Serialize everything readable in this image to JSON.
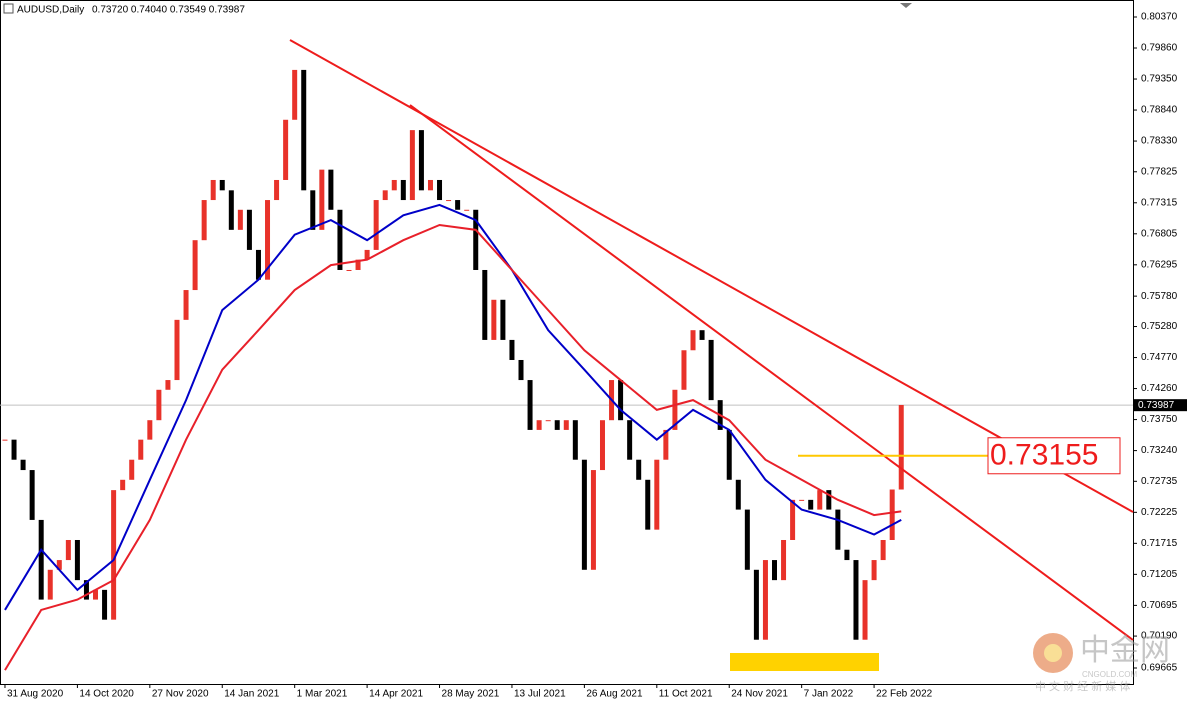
{
  "header": {
    "symbol": "AUDUSD,Daily",
    "quote": "0.73720 0.74040 0.73549 0.73987"
  },
  "watermark": {
    "brand": "中金网",
    "site": "CNGOLD.COM",
    "slogan": "中 文 财 经 新 媒 体"
  },
  "chart_data": {
    "type": "candlestick",
    "xlim": [
      -0.55,
      124.6
    ],
    "xticks": [
      {
        "value": 0,
        "label": "31 Aug 2020"
      },
      {
        "value": 8,
        "label": "14 Oct 2020"
      },
      {
        "value": 16,
        "label": "27 Nov 2020"
      },
      {
        "value": 24,
        "label": "14 Jan 2021"
      },
      {
        "value": 32,
        "label": "1 Mar 2021"
      },
      {
        "value": 40,
        "label": "14 Apr 2021"
      },
      {
        "value": 48,
        "label": "28 May 2021"
      },
      {
        "value": 56,
        "label": "13 Jul 2021"
      },
      {
        "value": 64,
        "label": "26 Aug 2021"
      },
      {
        "value": 72,
        "label": "11 Oct 2021"
      },
      {
        "value": 80,
        "label": "24 Nov 2021"
      },
      {
        "value": 88,
        "label": "7 Jan 2022"
      },
      {
        "value": 96,
        "label": "22 Feb 2022"
      }
    ],
    "ylim": [
      0.69402,
      0.80518
    ],
    "yticks": [
      {
        "value": 0.8037,
        "label": "0.80370"
      },
      {
        "value": 0.7986,
        "label": "0.79860"
      },
      {
        "value": 0.7935,
        "label": "0.79350"
      },
      {
        "value": 0.7884,
        "label": "0.78840"
      },
      {
        "value": 0.7833,
        "label": "0.78330"
      },
      0.77825,
      0.77315,
      {
        "value": 0.76805,
        "label": "0.76805"
      },
      0.76295,
      {
        "value": 0.7578,
        "label": "0.75780"
      },
      {
        "value": 0.7528,
        "label": "0.75280"
      },
      {
        "value": 0.7477,
        "label": "0.74770"
      },
      {
        "value": 0.7426,
        "label": "0.74260"
      },
      {
        "value": 0.7375,
        "label": "0.73750"
      },
      {
        "value": 0.7324,
        "label": "0.73240"
      },
      0.72735,
      0.72225,
      0.71715,
      0.71205,
      0.70695,
      {
        "value": 0.7019,
        "label": "0.70190"
      },
      0.69665
    ],
    "up_color": "#e8322a",
    "down_color": "#000000",
    "closes": [
      0.7342,
      0.7309,
      0.7292,
      0.721,
      0.7079,
      0.7128,
      0.7144,
      0.7177,
      0.7111,
      0.7079,
      0.7095,
      0.7046,
      0.7259,
      0.7276,
      0.7309,
      0.7342,
      0.7374,
      0.7424,
      0.744,
      0.7539,
      0.7588,
      0.767,
      0.7736,
      0.7769,
      0.7752,
      0.7687,
      0.772,
      0.7654,
      0.7605,
      0.7736,
      0.7769,
      0.7868,
      0.795,
      0.7752,
      0.7687,
      0.7786,
      0.772,
      0.7621,
      0.7621,
      0.7638,
      0.7654,
      0.7736,
      0.7752,
      0.7769,
      0.7736,
      0.7851,
      0.7752,
      0.7769,
      0.7736,
      0.7736,
      0.772,
      0.772,
      0.7621,
      0.7506,
      0.7572,
      0.7506,
      0.7473,
      0.744,
      0.7358,
      0.7374,
      0.7374,
      0.7358,
      0.7374,
      0.7309,
      0.7128,
      0.7292,
      0.7374,
      0.744,
      0.7374,
      0.7309,
      0.7276,
      0.7194,
      0.7309,
      0.7358,
      0.7424,
      0.7489,
      0.7522,
      0.7506,
      0.7407,
      0.7358,
      0.7276,
      0.7227,
      0.7128,
      0.7013,
      0.7144,
      0.7111,
      0.7177,
      0.7243,
      0.7243,
      0.7227,
      0.7259,
      0.7227,
      0.7161,
      0.7144,
      0.7013,
      0.7111,
      0.7144,
      0.7177,
      0.726,
      0.7399
    ],
    "series": [
      {
        "color": "#0000c8",
        "x": [
          0,
          4,
          8,
          12,
          16,
          20,
          24,
          28,
          32,
          36,
          40,
          44,
          48,
          52,
          56,
          60,
          64,
          68,
          72,
          76,
          80,
          84,
          88,
          92,
          96,
          99
        ],
        "values": [
          0.7062,
          0.7161,
          0.7095,
          0.7144,
          0.7276,
          0.7407,
          0.7555,
          0.7605,
          0.7679,
          0.7703,
          0.767,
          0.7711,
          0.7728,
          0.7703,
          0.7621,
          0.7522,
          0.7457,
          0.7391,
          0.7342,
          0.7391,
          0.7358,
          0.7276,
          0.7227,
          0.721,
          0.7186,
          0.721
        ]
      },
      {
        "color": "#e8202a",
        "x": [
          0,
          4,
          8,
          12,
          16,
          20,
          24,
          28,
          32,
          36,
          40,
          44,
          48,
          52,
          56,
          60,
          64,
          68,
          72,
          76,
          80,
          84,
          88,
          92,
          96,
          99
        ],
        "values": [
          0.6963,
          0.7062,
          0.7079,
          0.7111,
          0.721,
          0.7342,
          0.7457,
          0.7522,
          0.7588,
          0.7629,
          0.7638,
          0.767,
          0.7695,
          0.7687,
          0.7621,
          0.7555,
          0.7489,
          0.744,
          0.7391,
          0.7407,
          0.7374,
          0.7309,
          0.7276,
          0.7243,
          0.7218,
          0.7224
        ]
      }
    ],
    "last_price": {
      "value": 0.73987,
      "label": "0.73987"
    },
    "level": {
      "value": 0.73155,
      "label": "0.73155"
    }
  }
}
